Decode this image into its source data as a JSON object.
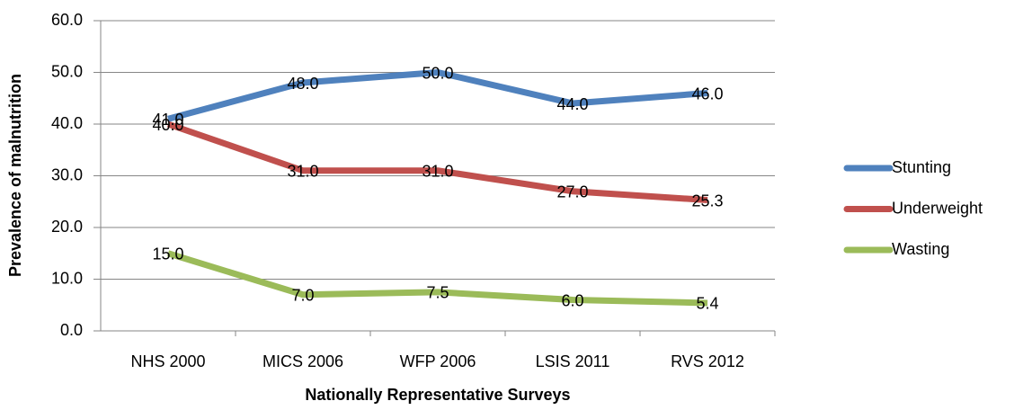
{
  "chart_data": {
    "type": "line",
    "x_label": "Nationally Representative Surveys",
    "y_label": "Prevalence of malnutrition",
    "categories": [
      "NHS 2000",
      "MICS 2006",
      "WFP 2006",
      "LSIS 2011",
      "RVS 2012"
    ],
    "series": [
      {
        "name": "Stunting",
        "color": "#4f81bd",
        "values": [
          41,
          48,
          50,
          44,
          46
        ],
        "value_labels": [
          "41.0",
          "48.0",
          "50.0",
          "44.0",
          "46.0"
        ]
      },
      {
        "name": "Underweight",
        "color": "#c0504d",
        "values": [
          40,
          31,
          31,
          27,
          25.3
        ],
        "value_labels": [
          "40.0",
          "31.0",
          "31.0",
          "27.0",
          "25.3"
        ]
      },
      {
        "name": "Wasting",
        "color": "#9bbb59",
        "values": [
          15,
          7,
          7.5,
          6,
          5.4
        ],
        "value_labels": [
          "15.0",
          "7.0",
          "7.5",
          "6.0",
          "5.4"
        ]
      }
    ],
    "ylim": [
      0,
      60
    ],
    "yticks": [
      {
        "value": 0,
        "label": "0.0"
      },
      {
        "value": 10,
        "label": "10.0"
      },
      {
        "value": 20,
        "label": "20.0"
      },
      {
        "value": 30,
        "label": "30.0"
      },
      {
        "value": 40,
        "label": "40.0"
      },
      {
        "value": 50,
        "label": "50.0"
      },
      {
        "value": 60,
        "label": "60.0"
      }
    ],
    "grid": true,
    "legend": "right"
  }
}
